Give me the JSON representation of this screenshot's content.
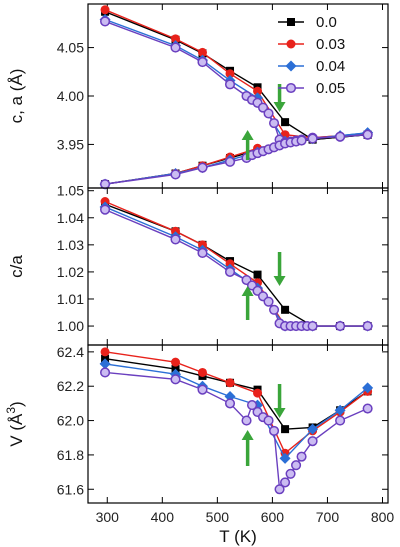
{
  "chart_data": [
    {
      "type": "line",
      "panel": "top",
      "ylabel": "c, a (Å)",
      "ylim": [
        3.905,
        4.095
      ],
      "y_ticks": [
        "3.95",
        "4.00",
        "4.05"
      ],
      "series": [
        {
          "name": "0.0",
          "color": "#000000",
          "marker": "square",
          "branches": [
            {
              "x": [
                296,
                424,
                473,
                523,
                573,
                623,
                673,
                773
              ],
              "y": [
                4.087,
                4.058,
                4.044,
                4.026,
                4.009,
                3.973,
                3.955,
                3.96
              ]
            },
            {
              "x": [
                296,
                424,
                473,
                523,
                573,
                623,
                673,
                773
              ],
              "y": [
                3.909,
                3.92,
                3.928,
                3.936,
                3.944,
                3.952,
                3.955,
                3.96
              ]
            }
          ]
        },
        {
          "name": "0.03",
          "color": "#e8221b",
          "marker": "circle",
          "branches": [
            {
              "x": [
                296,
                424,
                473,
                523,
                573,
                623,
                673,
                773
              ],
              "y": [
                4.089,
                4.059,
                4.045,
                4.023,
                4.005,
                3.96,
                3.957,
                3.961
              ]
            },
            {
              "x": [
                296,
                424,
                473,
                523,
                573,
                623,
                673,
                773
              ],
              "y": [
                3.909,
                3.92,
                3.928,
                3.937,
                3.946,
                3.952,
                3.957,
                3.961
              ]
            }
          ]
        },
        {
          "name": "0.04",
          "color": "#2b6fd6",
          "marker": "diamond",
          "branches": [
            {
              "x": [
                296,
                424,
                473,
                523,
                573,
                623,
                673,
                723,
                773
              ],
              "y": [
                4.079,
                4.052,
                4.037,
                4.016,
                3.998,
                3.953,
                3.956,
                3.959,
                3.962
              ]
            },
            {
              "x": [
                296,
                424,
                473,
                523,
                573,
                623,
                673,
                723,
                773
              ],
              "y": [
                3.909,
                3.92,
                3.926,
                3.934,
                3.942,
                3.953,
                3.956,
                3.959,
                3.962
              ]
            }
          ]
        },
        {
          "name": "0.05",
          "color": "#6a3fbf",
          "marker": "circle-open",
          "branches": [
            {
              "x": [
                296,
                424,
                473,
                523,
                553,
                563,
                573,
                583,
                593,
                603,
                613,
                623,
                633,
                643,
                653,
                673,
                723,
                773
              ],
              "y": [
                4.077,
                4.05,
                4.035,
                4.012,
                4.0,
                3.996,
                3.993,
                3.988,
                3.982,
                3.972,
                3.955,
                3.952,
                3.953,
                3.954,
                3.955,
                3.957,
                3.958,
                3.96
              ]
            },
            {
              "x": [
                296,
                424,
                473,
                523,
                553,
                563,
                573,
                583,
                593,
                603,
                613,
                623,
                633,
                643,
                653,
                673,
                723,
                773
              ],
              "y": [
                3.909,
                3.919,
                3.926,
                3.932,
                3.936,
                3.939,
                3.941,
                3.943,
                3.945,
                3.947,
                3.949,
                3.951,
                3.952,
                3.953,
                3.954,
                3.956,
                3.958,
                3.96
              ]
            }
          ]
        }
      ],
      "arrows": [
        {
          "x": 555,
          "direction": "up",
          "color": "#3aa53a"
        },
        {
          "x": 613,
          "direction": "down",
          "color": "#3aa53a"
        }
      ],
      "legend": "top-right"
    },
    {
      "type": "line",
      "panel": "middle",
      "ylabel": "c/a",
      "ylim": [
        0.993,
        1.051
      ],
      "y_ticks": [
        "1.00",
        "1.01",
        "1.02",
        "1.03",
        "1.04",
        "1.05"
      ],
      "series": [
        {
          "name": "0.0",
          "color": "#000000",
          "marker": "square",
          "x": [
            296,
            424,
            473,
            523,
            573,
            623,
            673,
            723,
            773
          ],
          "y": [
            1.045,
            1.035,
            1.03,
            1.024,
            1.019,
            1.006,
            1.0,
            1.0,
            1.0
          ]
        },
        {
          "name": "0.03",
          "color": "#e8221b",
          "marker": "circle",
          "x": [
            296,
            424,
            473,
            523,
            573,
            623,
            673,
            723,
            773
          ],
          "y": [
            1.046,
            1.035,
            1.03,
            1.023,
            1.016,
            1.0,
            1.0,
            1.0,
            1.0
          ]
        },
        {
          "name": "0.04",
          "color": "#2b6fd6",
          "marker": "diamond",
          "x": [
            296,
            424,
            473,
            523,
            573,
            623,
            673,
            723,
            773
          ],
          "y": [
            1.044,
            1.033,
            1.028,
            1.021,
            1.014,
            1.0,
            1.0,
            1.0,
            1.0
          ]
        },
        {
          "name": "0.05",
          "color": "#6a3fbf",
          "marker": "circle-open",
          "x": [
            296,
            424,
            473,
            523,
            553,
            563,
            573,
            583,
            593,
            603,
            613,
            623,
            633,
            643,
            653,
            663,
            673,
            723,
            773
          ],
          "y": [
            1.043,
            1.032,
            1.027,
            1.02,
            1.017,
            1.015,
            1.013,
            1.011,
            1.009,
            1.006,
            1.001,
            1.0,
            1.0,
            1.0,
            1.0,
            1.0,
            1.0,
            1.0,
            1.0
          ]
        }
      ],
      "arrows": [
        {
          "x": 555,
          "direction": "up",
          "color": "#3aa53a"
        },
        {
          "x": 613,
          "direction": "down",
          "color": "#3aa53a"
        }
      ]
    },
    {
      "type": "line",
      "panel": "bottom",
      "ylabel": "V (Å3)",
      "xlabel": "T (K)",
      "ylim": [
        61.52,
        62.44
      ],
      "xlim": [
        265,
        810
      ],
      "x_ticks": [
        "300",
        "400",
        "500",
        "600",
        "700",
        "800"
      ],
      "y_ticks": [
        "61.6",
        "61.8",
        "62.0",
        "62.2",
        "62.4"
      ],
      "series": [
        {
          "name": "0.0",
          "color": "#000000",
          "marker": "square",
          "x": [
            296,
            424,
            473,
            523,
            573,
            623,
            673,
            723,
            773
          ],
          "y": [
            62.36,
            62.3,
            62.26,
            62.22,
            62.18,
            61.95,
            61.96,
            62.06,
            62.17
          ]
        },
        {
          "name": "0.03",
          "color": "#e8221b",
          "marker": "circle",
          "x": [
            296,
            424,
            473,
            523,
            573,
            623,
            673,
            723,
            773
          ],
          "y": [
            62.4,
            62.34,
            62.28,
            62.22,
            62.16,
            61.81,
            61.94,
            62.05,
            62.17
          ]
        },
        {
          "name": "0.04",
          "color": "#2b6fd6",
          "marker": "diamond",
          "x": [
            296,
            424,
            473,
            523,
            573,
            623,
            673,
            723,
            773
          ],
          "y": [
            62.33,
            62.27,
            62.2,
            62.14,
            62.09,
            61.78,
            61.95,
            62.06,
            62.19
          ]
        },
        {
          "name": "0.05",
          "color": "#6a3fbf",
          "marker": "circle-open",
          "x": [
            296,
            424,
            473,
            523,
            553,
            563,
            573,
            583,
            593,
            603,
            613,
            623,
            633,
            643,
            653,
            673,
            723,
            773
          ],
          "y": [
            62.28,
            62.24,
            62.18,
            62.1,
            62.0,
            62.09,
            62.05,
            62.02,
            62.0,
            61.94,
            61.6,
            61.64,
            61.69,
            61.74,
            61.79,
            61.88,
            62.0,
            62.07
          ]
        }
      ],
      "arrows": [
        {
          "x": 555,
          "direction": "up",
          "color": "#3aa53a"
        },
        {
          "x": 613,
          "direction": "down",
          "color": "#3aa53a"
        }
      ]
    }
  ]
}
